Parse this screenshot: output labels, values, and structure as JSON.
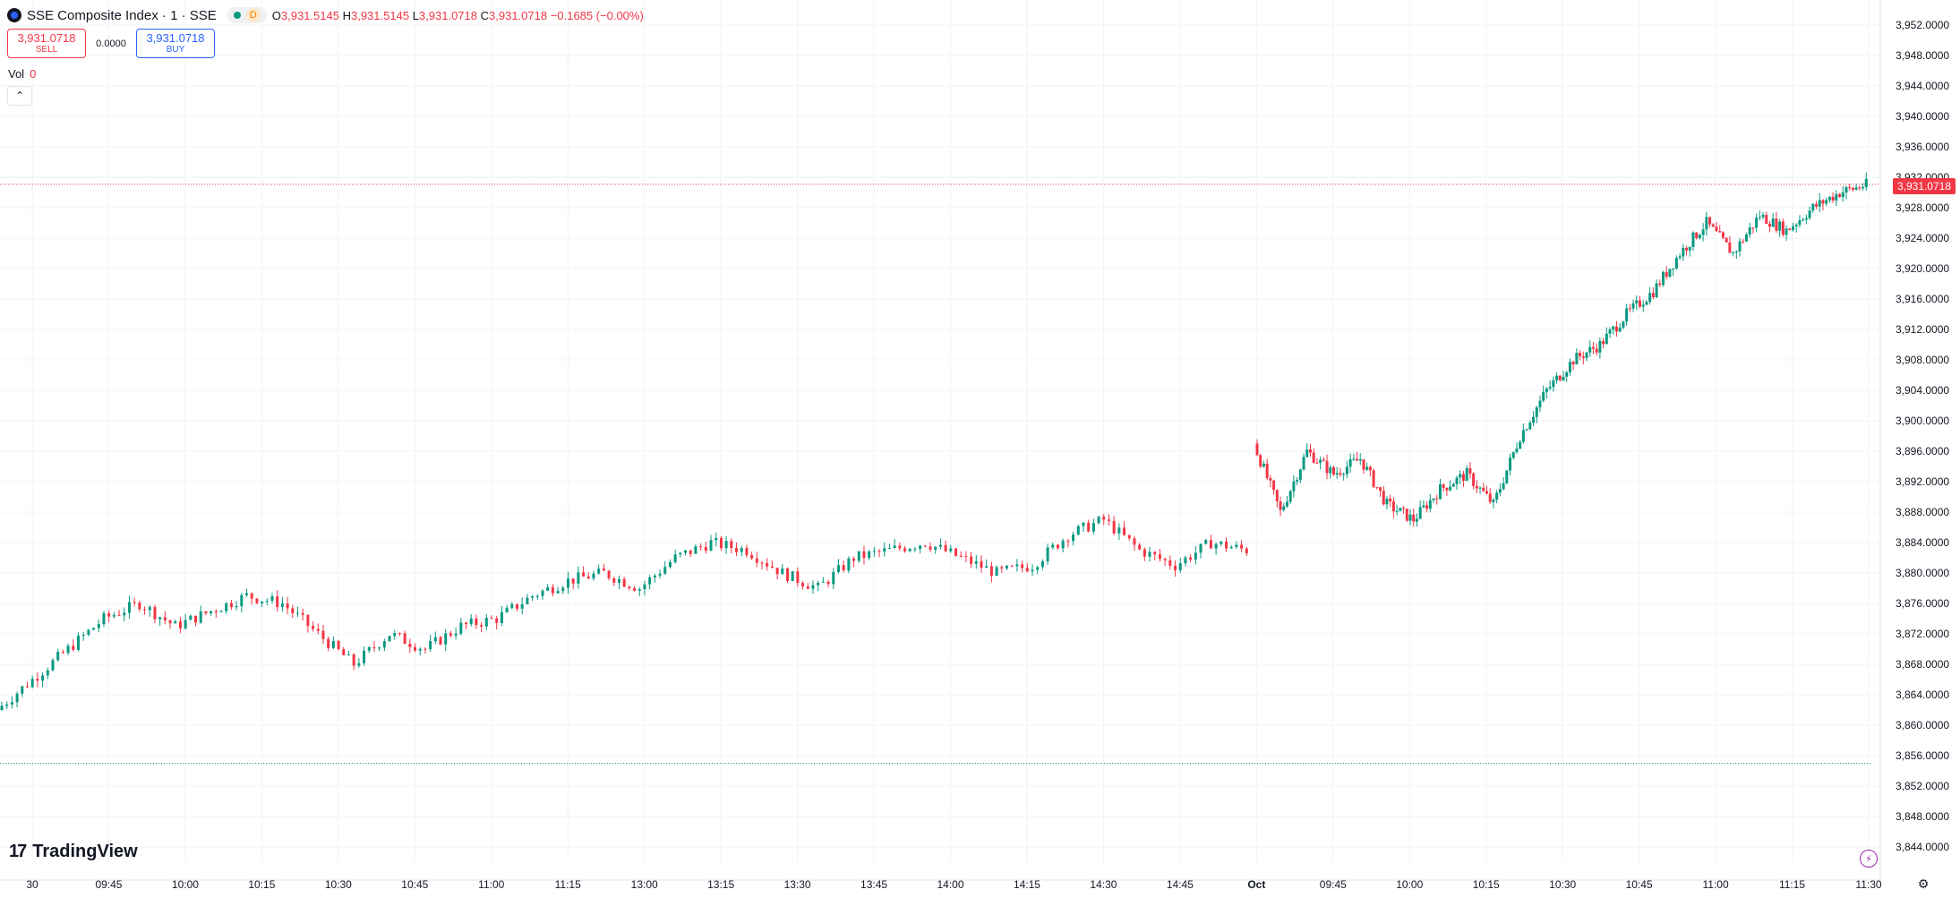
{
  "legend": {
    "symbol": "SSE Composite Index · 1 · SSE",
    "status_badge": "D",
    "o_label": "O",
    "o_value": "3,931.5145",
    "h_label": "H",
    "h_value": "3,931.5145",
    "l_label": "L",
    "l_value": "3,931.0718",
    "c_label": "C",
    "c_value": "3,931.0718",
    "change": "−0.1685 (−0.00%)"
  },
  "trade": {
    "sell_price": "3,931.0718",
    "sell_label": "SELL",
    "spread": "0.0000",
    "buy_price": "3,931.0718",
    "buy_label": "BUY"
  },
  "volume": {
    "label": "Vol",
    "value": "0"
  },
  "last_price_label": "3,931.0718",
  "brand": "TradingView",
  "colors": {
    "up": "#089981",
    "down": "#f23645",
    "grid": "#f0f3fa",
    "axis_text": "#131722"
  },
  "icons": {
    "collapse": "chevron-up-icon",
    "bolt": "lightning-icon",
    "settings": "settings-icon"
  },
  "chart_data": {
    "type": "candlestick",
    "y_ticks": [
      "3,952.0000",
      "3,948.0000",
      "3,944.0000",
      "3,940.0000",
      "3,936.0000",
      "3,932.0000",
      "3,928.0000",
      "3,924.0000",
      "3,920.0000",
      "3,916.0000",
      "3,912.0000",
      "3,908.0000",
      "3,904.0000",
      "3,900.0000",
      "3,896.0000",
      "3,892.0000",
      "3,888.0000",
      "3,884.0000",
      "3,880.0000",
      "3,876.0000",
      "3,872.0000",
      "3,868.0000",
      "3,864.0000",
      "3,860.0000",
      "3,856.0000",
      "3,852.0000",
      "3,848.0000",
      "3,844.0000"
    ],
    "y_range": [
      3844,
      3952
    ],
    "x_ticks": [
      "30",
      "09:45",
      "10:00",
      "10:15",
      "10:30",
      "10:45",
      "11:00",
      "11:15",
      "13:00",
      "13:15",
      "13:30",
      "13:45",
      "14:00",
      "14:15",
      "14:30",
      "14:45",
      "Oct",
      "09:45",
      "10:00",
      "10:15",
      "10:30",
      "10:45",
      "11:00",
      "11:15",
      "11:30"
    ],
    "bold_x_ticks": [
      "Oct"
    ],
    "last_price": 3931.0718,
    "reference_line": 3855,
    "segments": [
      {
        "session": "30",
        "close_path": [
          3862,
          3866,
          3870,
          3874,
          3876,
          3873,
          3875,
          3877,
          3876,
          3872,
          3868,
          3872,
          3870,
          3873,
          3874,
          3877,
          3879,
          3880,
          3878,
          3882,
          3884,
          3883,
          3880,
          3878,
          3882,
          3883,
          3884,
          3882,
          3880,
          3881,
          3885,
          3887,
          3883,
          3881,
          3884,
          3883
        ]
      },
      {
        "session": "Oct",
        "close_path": [
          3897,
          3888,
          3896,
          3893,
          3895,
          3889,
          3887,
          3891,
          3893,
          3889,
          3898,
          3904,
          3908,
          3910,
          3914,
          3917,
          3922,
          3926,
          3922,
          3927,
          3925,
          3928,
          3930,
          3931
        ]
      }
    ]
  }
}
